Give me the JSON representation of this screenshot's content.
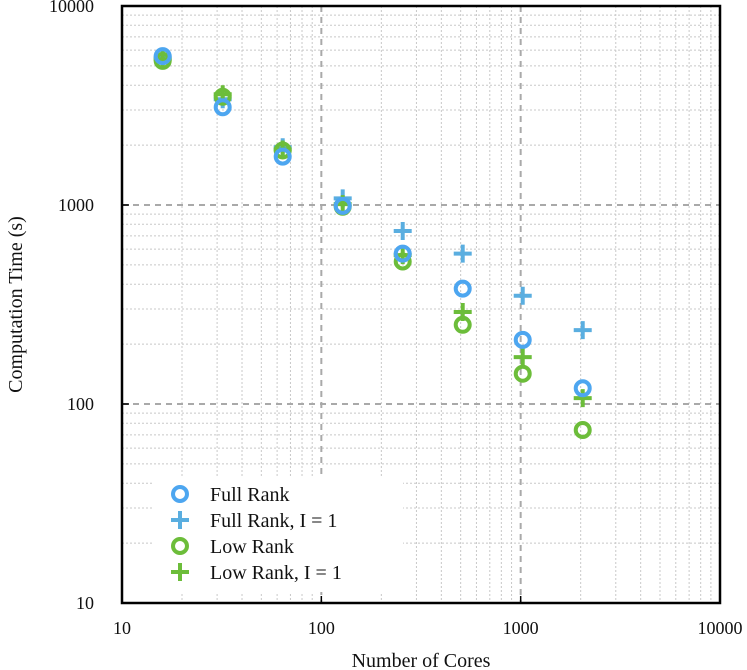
{
  "chart_data": {
    "type": "scatter",
    "title": "",
    "xlabel": "Number of Cores",
    "ylabel": "Computation Time (s)",
    "xscale": "log",
    "yscale": "log",
    "xlim": [
      10,
      10000
    ],
    "ylim": [
      10,
      10000
    ],
    "x_ticks": [
      10,
      100,
      1000,
      10000
    ],
    "x_tick_labels": [
      "10",
      "100",
      "1000",
      "10000"
    ],
    "y_ticks": [
      10,
      100,
      1000,
      10000
    ],
    "y_tick_labels": [
      "10",
      "100",
      "1000",
      "10000"
    ],
    "grid": true,
    "legend_position": "bottom-left",
    "series": [
      {
        "name": "Full Rank",
        "marker": "circle",
        "color": "#4da6f0",
        "x": [
          16,
          32,
          64,
          128,
          256,
          512,
          1024,
          2048
        ],
        "y": [
          5600,
          3100,
          1750,
          990,
          570,
          380,
          210,
          120
        ]
      },
      {
        "name": "Full Rank, I = 1",
        "marker": "plus",
        "color": "#5aaee0",
        "x": [
          16,
          32,
          64,
          128,
          256,
          512,
          1024,
          2048
        ],
        "y": [
          5500,
          3400,
          1950,
          1080,
          740,
          570,
          350,
          235
        ]
      },
      {
        "name": "Low Rank",
        "marker": "circle",
        "color": "#6cbd3a",
        "x": [
          16,
          32,
          64,
          128,
          256,
          512,
          1024,
          2048
        ],
        "y": [
          5300,
          3500,
          1880,
          980,
          520,
          250,
          142,
          74
        ]
      },
      {
        "name": "Low Rank, I = 1",
        "marker": "plus",
        "color": "#6cbd3a",
        "x": [
          16,
          32,
          64,
          128,
          256,
          512,
          1024,
          2048
        ],
        "y": [
          5400,
          3600,
          1900,
          1010,
          560,
          290,
          172,
          107
        ]
      }
    ]
  }
}
